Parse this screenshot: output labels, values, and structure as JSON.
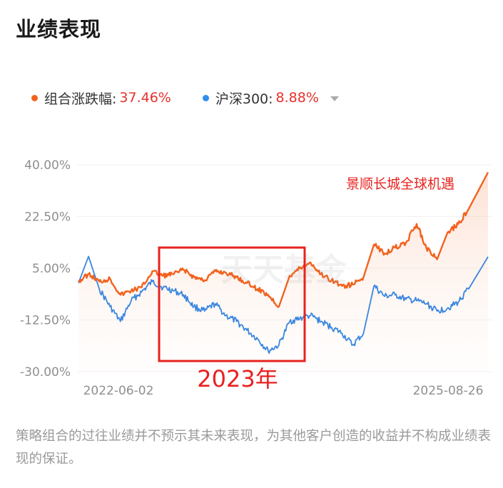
{
  "page": {
    "title": "业绩表现"
  },
  "legend": {
    "series1": {
      "label": "组合涨跌幅:",
      "value": "37.46%",
      "color": "#f2621e"
    },
    "series2": {
      "label": "沪深300:",
      "value": "8.88%",
      "color": "#2b8ff0"
    }
  },
  "annotations": {
    "product_name": "景顺长城全球机遇",
    "box_label": "2023年",
    "watermark": "天天基金"
  },
  "disclaimer": "策略组合的过往业绩并不预示其未来表现，为其他客户创造的收益并不构成业绩表现的保证。",
  "colors": {
    "portfolio": "#f2621e",
    "index": "#3a86e0",
    "highlight_box": "#e8221f",
    "value_text": "#e6322c"
  },
  "chart_data": {
    "type": "line",
    "x_start": "2022-06-02",
    "x_end": "2025-08-26",
    "x_tick_labels": [
      "2022-06-02",
      "2025-08-26"
    ],
    "y_tick_labels": [
      "40.00%",
      "22.50%",
      "5.00%",
      "-12.50%",
      "-30.00%"
    ],
    "ylim": [
      -30,
      40
    ],
    "series": [
      {
        "name": "组合涨跌幅",
        "x": [
          "2022-06-02",
          "2022-07-01",
          "2022-08-01",
          "2022-09-01",
          "2022-10-01",
          "2022-11-01",
          "2022-12-01",
          "2023-01-01",
          "2023-02-01",
          "2023-03-01",
          "2023-04-01",
          "2023-05-01",
          "2023-06-01",
          "2023-07-01",
          "2023-08-01",
          "2023-09-01",
          "2023-10-01",
          "2023-11-01",
          "2023-12-01",
          "2024-01-01",
          "2024-02-01",
          "2024-03-01",
          "2024-04-01",
          "2024-05-01",
          "2024-06-01",
          "2024-07-01",
          "2024-08-01",
          "2024-09-01",
          "2024-10-01",
          "2024-11-01",
          "2024-12-01",
          "2025-01-01",
          "2025-02-01",
          "2025-03-01",
          "2025-04-01",
          "2025-05-01",
          "2025-06-01",
          "2025-07-01",
          "2025-08-26"
        ],
        "values": [
          0.5,
          3.0,
          0.5,
          1.5,
          -4.0,
          -2.5,
          -1.5,
          4.0,
          2.5,
          3.0,
          4.5,
          2.0,
          1.0,
          4.0,
          3.5,
          2.0,
          0.0,
          -2.0,
          -4.0,
          -8.0,
          2.5,
          5.0,
          7.0,
          3.0,
          1.0,
          -1.0,
          -0.5,
          2.0,
          13.0,
          10.0,
          12.0,
          13.5,
          20.0,
          12.0,
          8.0,
          17.0,
          20.0,
          25.0,
          37.46
        ]
      },
      {
        "name": "沪深300",
        "x": [
          "2022-06-02",
          "2022-07-01",
          "2022-08-01",
          "2022-09-01",
          "2022-10-01",
          "2022-11-01",
          "2022-12-01",
          "2023-01-01",
          "2023-02-01",
          "2023-03-01",
          "2023-04-01",
          "2023-05-01",
          "2023-06-01",
          "2023-07-01",
          "2023-08-01",
          "2023-09-01",
          "2023-10-01",
          "2023-11-01",
          "2023-12-01",
          "2024-01-01",
          "2024-02-01",
          "2024-03-01",
          "2024-04-01",
          "2024-05-01",
          "2024-06-01",
          "2024-07-01",
          "2024-08-01",
          "2024-09-01",
          "2024-10-01",
          "2024-11-01",
          "2024-12-01",
          "2025-01-01",
          "2025-02-01",
          "2025-03-01",
          "2025-04-01",
          "2025-05-01",
          "2025-06-01",
          "2025-07-01",
          "2025-08-26"
        ],
        "values": [
          0.0,
          9.0,
          -2.0,
          -8.0,
          -13.0,
          -6.0,
          -3.0,
          0.5,
          -1.5,
          -2.5,
          -4.0,
          -8.0,
          -9.5,
          -7.0,
          -11.0,
          -13.0,
          -16.0,
          -19.0,
          -23.0,
          -21.0,
          -13.0,
          -12.0,
          -11.0,
          -13.0,
          -15.0,
          -17.0,
          -21.0,
          -17.0,
          -1.0,
          -4.5,
          -4.0,
          -5.5,
          -6.0,
          -7.0,
          -9.5,
          -8.5,
          -6.5,
          -2.0,
          8.88
        ]
      }
    ]
  }
}
